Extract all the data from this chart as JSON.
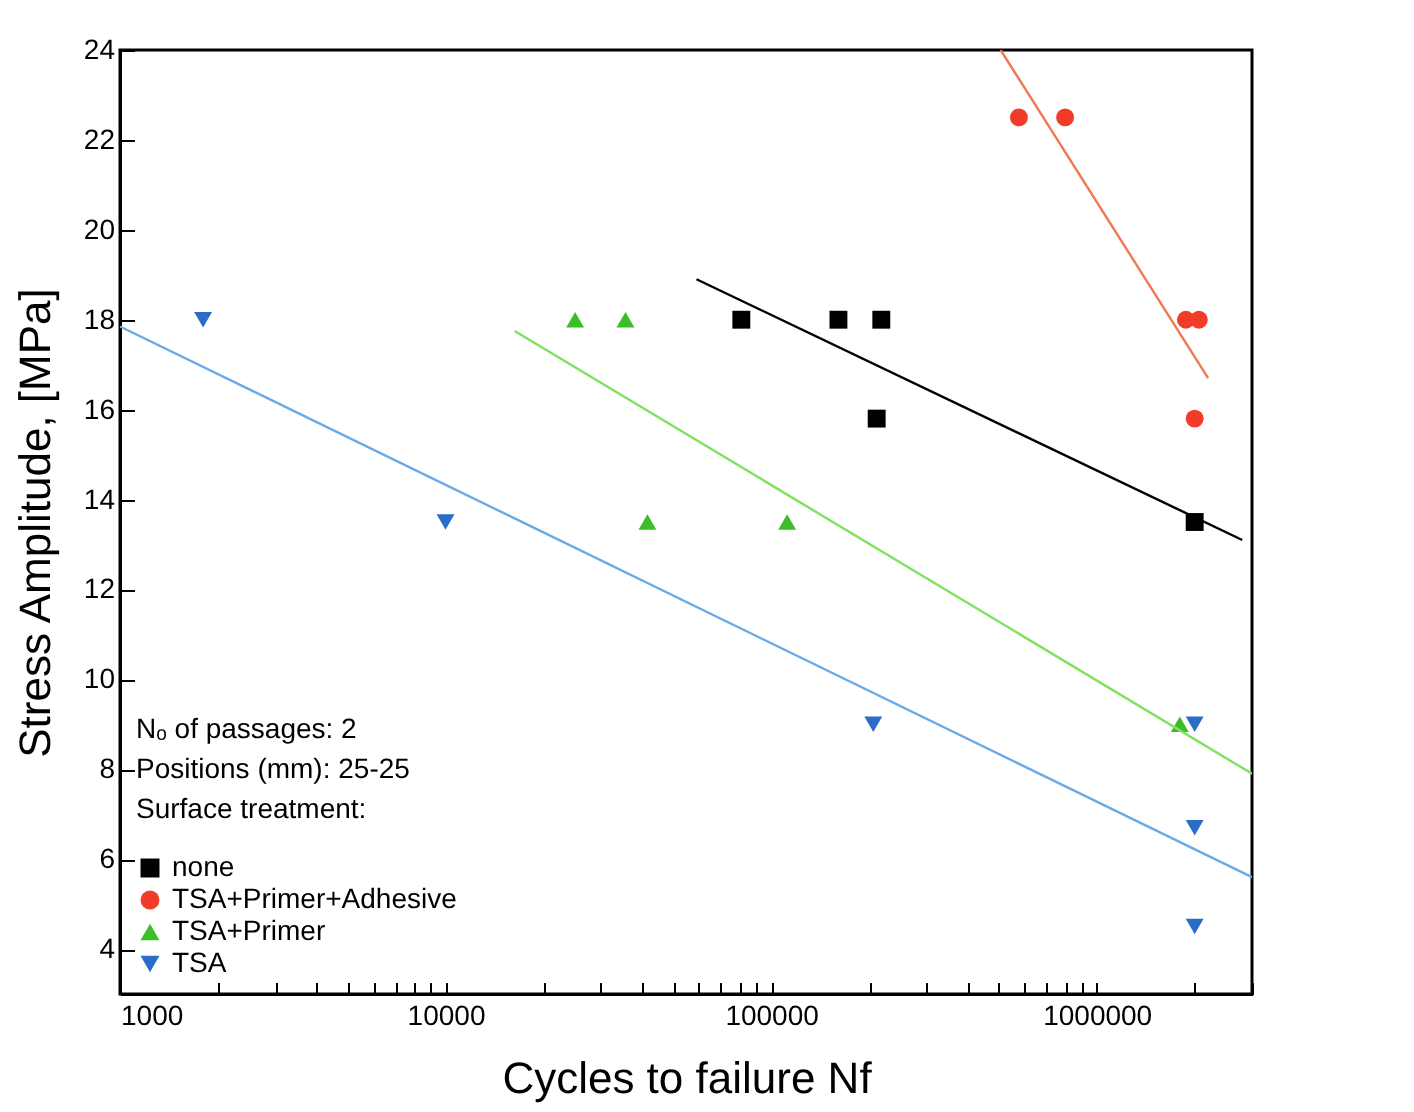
{
  "chart_data": {
    "type": "scatter",
    "xlabel": "Cycles to failure Nf",
    "ylabel": "Stress Amplitude, [MPa]",
    "log": "x",
    "xlim": [
      1000,
      3000000
    ],
    "ylim": [
      3,
      24
    ],
    "xticks": [
      1000,
      {
        "value": 2000,
        "label": null
      },
      {
        "value": 3000,
        "label": null
      },
      {
        "value": 4000,
        "label": null
      },
      {
        "value": 5000,
        "label": null
      },
      {
        "value": 6000,
        "label": null
      },
      {
        "value": 7000,
        "label": null
      },
      {
        "value": 8000,
        "label": null
      },
      {
        "value": 9000,
        "label": null
      },
      10000,
      {
        "value": 20000,
        "label": null
      },
      {
        "value": 30000,
        "label": null
      },
      {
        "value": 40000,
        "label": null
      },
      {
        "value": 50000,
        "label": null
      },
      {
        "value": 60000,
        "label": null
      },
      {
        "value": 70000,
        "label": null
      },
      {
        "value": 80000,
        "label": null
      },
      {
        "value": 90000,
        "label": null
      },
      100000,
      {
        "value": 200000,
        "label": null
      },
      {
        "value": 300000,
        "label": null
      },
      {
        "value": 400000,
        "label": null
      },
      {
        "value": 500000,
        "label": null
      },
      {
        "value": 600000,
        "label": null
      },
      {
        "value": 700000,
        "label": null
      },
      {
        "value": 800000,
        "label": null
      },
      {
        "value": 900000,
        "label": null
      },
      1000000,
      {
        "value": 2000000,
        "label": null
      },
      {
        "value": 3000000,
        "label": null
      }
    ],
    "yticks": [
      4,
      6,
      8,
      10,
      12,
      14,
      16,
      18,
      20,
      22,
      24
    ],
    "legend": "bottom left",
    "grid": false,
    "annotations": [
      "Nₒ of passages: 2",
      "Positions (mm): 25-25",
      "Surface treatment:"
    ],
    "series": [
      {
        "name": "none",
        "type": "scatter",
        "marker": "square",
        "color": "#000000",
        "x": [
          81000,
          161000,
          218000,
          211000,
          2000000
        ],
        "values": [
          18,
          18,
          18,
          15.8,
          13.5
        ]
      },
      {
        "name": "TSA+Primer+Adhesive",
        "type": "scatter",
        "marker": "circle",
        "color": "#f03c28",
        "x": [
          577000,
          800000,
          1880000,
          2060000,
          2000000
        ],
        "values": [
          22.5,
          22.5,
          18,
          18,
          15.8
        ]
      },
      {
        "name": "TSA+Primer",
        "type": "scatter",
        "marker": "triangle",
        "color": "#3cbe28",
        "x": [
          25000,
          35700,
          41700,
          112000,
          1800000
        ],
        "values": [
          18,
          18,
          13.5,
          13.5,
          9
        ]
      },
      {
        "name": "TSA",
        "type": "scatter",
        "marker": "triangle-down",
        "color": "#2a6cc8",
        "x": [
          1800,
          10000,
          206000,
          2000000,
          2000000,
          2000000
        ],
        "values": [
          18,
          13.5,
          9,
          9,
          6.7,
          4.5
        ]
      },
      {
        "type": "line",
        "color": "#000000",
        "x": [
          59000,
          2800000
        ],
        "values": [
          18.9,
          13.1
        ]
      },
      {
        "type": "line",
        "color": "#f07850",
        "x": [
          507000,
          2200000
        ],
        "values": [
          24,
          16.7
        ]
      },
      {
        "type": "line",
        "color": "#80e060",
        "x": [
          16300,
          3000000
        ],
        "values": [
          17.75,
          7.9
        ]
      },
      {
        "type": "line",
        "color": "#6aaae8",
        "x": [
          1000,
          3000000
        ],
        "values": [
          17.85,
          5.6
        ]
      }
    ]
  }
}
